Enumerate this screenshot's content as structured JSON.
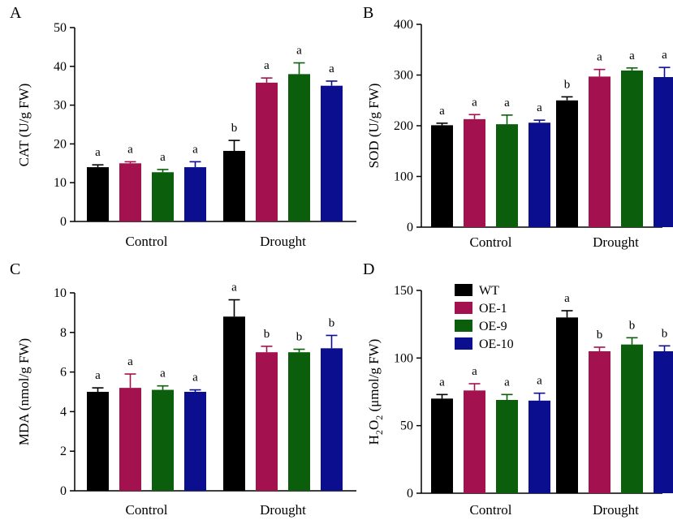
{
  "legend": [
    {
      "name": "WT",
      "color": "#000000"
    },
    {
      "name": "OE-1",
      "color": "#a3114f"
    },
    {
      "name": "OE-9",
      "color": "#0a5e0c"
    },
    {
      "name": "OE-10",
      "color": "#0b0f8f"
    }
  ],
  "chart_data": [
    {
      "type": "bar",
      "panel": "A",
      "ylabel": "CAT (U/g FW)",
      "categories": [
        "Control",
        "Drought"
      ],
      "ylim": [
        0,
        50
      ],
      "yticks": [
        0,
        10,
        20,
        30,
        40,
        50
      ],
      "series": [
        {
          "name": "WT",
          "values": [
            14,
            18.2
          ],
          "errors": [
            0.6,
            2.7
          ],
          "labels": [
            "a",
            "b"
          ]
        },
        {
          "name": "OE-1",
          "values": [
            15,
            35.8
          ],
          "errors": [
            0.4,
            1.2
          ],
          "labels": [
            "a",
            "a"
          ]
        },
        {
          "name": "OE-9",
          "values": [
            12.7,
            38
          ],
          "errors": [
            0.7,
            2.9
          ],
          "labels": [
            "a",
            "a"
          ]
        },
        {
          "name": "OE-10",
          "values": [
            14,
            35
          ],
          "errors": [
            1.4,
            1.2
          ],
          "labels": [
            "a",
            "a"
          ]
        }
      ]
    },
    {
      "type": "bar",
      "panel": "B",
      "ylabel": "SOD (U/g FW)",
      "categories": [
        "Control",
        "Drought"
      ],
      "ylim": [
        0,
        400
      ],
      "yticks": [
        0,
        100,
        200,
        300,
        400
      ],
      "series": [
        {
          "name": "WT",
          "values": [
            201,
            250
          ],
          "errors": [
            4,
            7
          ],
          "labels": [
            "a",
            "b"
          ]
        },
        {
          "name": "OE-1",
          "values": [
            213,
            297
          ],
          "errors": [
            9,
            14
          ],
          "labels": [
            "a",
            "a"
          ]
        },
        {
          "name": "OE-9",
          "values": [
            203,
            309
          ],
          "errors": [
            18,
            5
          ],
          "labels": [
            "a",
            "a"
          ]
        },
        {
          "name": "OE-10",
          "values": [
            206,
            296
          ],
          "errors": [
            5,
            19
          ],
          "labels": [
            "a",
            "a"
          ]
        }
      ]
    },
    {
      "type": "bar",
      "panel": "C",
      "ylabel": "MDA (nmol/g FW)",
      "categories": [
        "Control",
        "Drought"
      ],
      "ylim": [
        0,
        10
      ],
      "yticks": [
        0,
        2,
        4,
        6,
        8,
        10
      ],
      "series": [
        {
          "name": "WT",
          "values": [
            5,
            8.8
          ],
          "errors": [
            0.2,
            0.85
          ],
          "labels": [
            "a",
            "a"
          ]
        },
        {
          "name": "OE-1",
          "values": [
            5.2,
            7
          ],
          "errors": [
            0.7,
            0.3
          ],
          "labels": [
            "a",
            "b"
          ]
        },
        {
          "name": "OE-9",
          "values": [
            5.1,
            7
          ],
          "errors": [
            0.2,
            0.15
          ],
          "labels": [
            "a",
            "b"
          ]
        },
        {
          "name": "OE-10",
          "values": [
            5,
            7.2
          ],
          "errors": [
            0.1,
            0.65
          ],
          "labels": [
            "a",
            "b"
          ]
        }
      ]
    },
    {
      "type": "bar",
      "panel": "D",
      "ylabel": "H2O2 (μmol/g FW)",
      "ylabel_parts": {
        "h": "H",
        "sub1": "2",
        "o": "O",
        "sub2": "2",
        "rest": " (μmol/g FW)"
      },
      "categories": [
        "Control",
        "Drought"
      ],
      "ylim": [
        0,
        150
      ],
      "yticks": [
        0,
        50,
        100,
        150
      ],
      "series": [
        {
          "name": "WT",
          "values": [
            70,
            130
          ],
          "errors": [
            3,
            5
          ],
          "labels": [
            "a",
            "a"
          ]
        },
        {
          "name": "OE-1",
          "values": [
            76,
            105
          ],
          "errors": [
            5,
            3
          ],
          "labels": [
            "a",
            "b"
          ]
        },
        {
          "name": "OE-9",
          "values": [
            69,
            110
          ],
          "errors": [
            4,
            5
          ],
          "labels": [
            "a",
            "b"
          ]
        },
        {
          "name": "OE-10",
          "values": [
            68.5,
            105
          ],
          "errors": [
            5.5,
            4
          ],
          "labels": [
            "a",
            "b"
          ]
        }
      ]
    }
  ]
}
